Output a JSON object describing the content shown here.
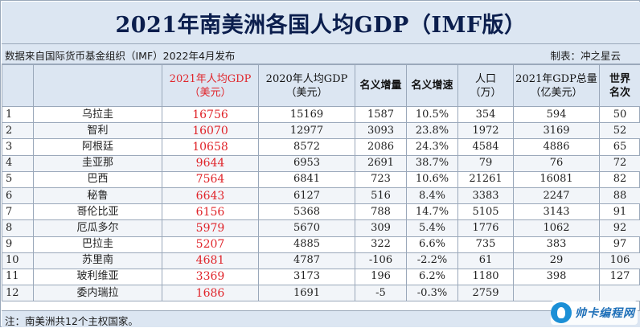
{
  "title": "2021年南美洲各国人均GDP（IMF版）",
  "source": "数据来自国际货币基金组织（IMF）2022年4月发布",
  "maker": "制表：冲之星云",
  "headers": {
    "col2_line1": "2021年人均GDP",
    "col2_line2": "（美元）",
    "col3_line1": "2020年人均GDP",
    "col3_line2": "（美元）",
    "col4": "名义增量",
    "col5": "名义增速",
    "col6_line1": "人口",
    "col6_line2": "（万）",
    "col7_line1": "2021年GDP总量",
    "col7_line2": "（亿美元）",
    "col8_line1": "世界",
    "col8_line2": "名次"
  },
  "rows": [
    {
      "idx": "1",
      "country": "乌拉圭",
      "gdp2021": "16756",
      "gdp2020": "15169",
      "increase": "1587",
      "growth": "10.5%",
      "population": "354",
      "total": "594",
      "rank": "50"
    },
    {
      "idx": "2",
      "country": "智利",
      "gdp2021": "16070",
      "gdp2020": "12977",
      "increase": "3093",
      "growth": "23.8%",
      "population": "1972",
      "total": "3169",
      "rank": "52"
    },
    {
      "idx": "3",
      "country": "阿根廷",
      "gdp2021": "10658",
      "gdp2020": "8572",
      "increase": "2086",
      "growth": "24.3%",
      "population": "4584",
      "total": "4886",
      "rank": "65"
    },
    {
      "idx": "4",
      "country": "圭亚那",
      "gdp2021": "9644",
      "gdp2020": "6953",
      "increase": "2691",
      "growth": "38.7%",
      "population": "79",
      "total": "76",
      "rank": "72"
    },
    {
      "idx": "5",
      "country": "巴西",
      "gdp2021": "7564",
      "gdp2020": "6841",
      "increase": "723",
      "growth": "10.6%",
      "population": "21261",
      "total": "16081",
      "rank": "82"
    },
    {
      "idx": "6",
      "country": "秘鲁",
      "gdp2021": "6643",
      "gdp2020": "6127",
      "increase": "516",
      "growth": "8.4%",
      "population": "3383",
      "total": "2247",
      "rank": "88"
    },
    {
      "idx": "7",
      "country": "哥伦比亚",
      "gdp2021": "6156",
      "gdp2020": "5368",
      "increase": "788",
      "growth": "14.7%",
      "population": "5105",
      "total": "3143",
      "rank": "91"
    },
    {
      "idx": "8",
      "country": "厄瓜多尔",
      "gdp2021": "5979",
      "gdp2020": "5670",
      "increase": "309",
      "growth": "5.4%",
      "population": "1776",
      "total": "1062",
      "rank": "92"
    },
    {
      "idx": "9",
      "country": "巴拉圭",
      "gdp2021": "5207",
      "gdp2020": "4885",
      "increase": "322",
      "growth": "6.6%",
      "population": "735",
      "total": "383",
      "rank": "97"
    },
    {
      "idx": "10",
      "country": "苏里南",
      "gdp2021": "4681",
      "gdp2020": "4787",
      "increase": "-106",
      "growth": "-2.2%",
      "population": "61",
      "total": "29",
      "rank": "106"
    },
    {
      "idx": "11",
      "country": "玻利维亚",
      "gdp2021": "3369",
      "gdp2020": "3173",
      "increase": "196",
      "growth": "6.2%",
      "population": "1180",
      "total": "398",
      "rank": "127"
    },
    {
      "idx": "12",
      "country": "委内瑞拉",
      "gdp2021": "1686",
      "gdp2020": "1691",
      "increase": "-5",
      "growth": "-0.3%",
      "population": "2759",
      "total": "",
      "rank": ""
    }
  ],
  "note": "注：南美洲共12个主权国家。",
  "watermark": "帅卡编程网",
  "colors": {
    "accent_red": "#e0242a",
    "header_bg": "#dce6f2",
    "title_text": "#0b1e4d"
  }
}
